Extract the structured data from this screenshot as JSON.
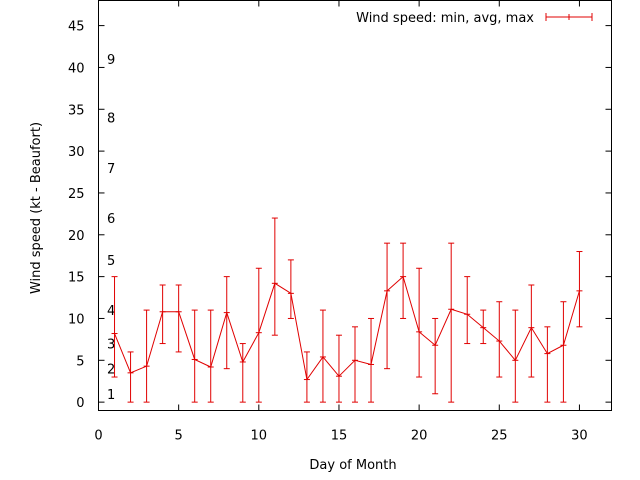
{
  "chart_data": {
    "type": "line",
    "title": "",
    "xlabel": "Day of Month",
    "ylabel": "Wind speed (kt - Beaufort)",
    "xlim": [
      0,
      32
    ],
    "ylim": [
      -1,
      48
    ],
    "x_ticks": [
      0,
      5,
      10,
      15,
      20,
      25,
      30
    ],
    "y_ticks": [
      0,
      5,
      10,
      15,
      20,
      25,
      30,
      35,
      40,
      45
    ],
    "beaufort_labels": [
      {
        "label": "1",
        "kt": 1
      },
      {
        "label": "2",
        "kt": 4
      },
      {
        "label": "3",
        "kt": 7
      },
      {
        "label": "4",
        "kt": 11
      },
      {
        "label": "5",
        "kt": 17
      },
      {
        "label": "6",
        "kt": 22
      },
      {
        "label": "7",
        "kt": 28
      },
      {
        "label": "8",
        "kt": 34
      },
      {
        "label": "9",
        "kt": 41
      }
    ],
    "legend_position": "top-right",
    "grid": false,
    "color": "#e00000",
    "series": [
      {
        "name": "Wind speed: min, avg, max",
        "x": [
          1,
          2,
          3,
          4,
          5,
          6,
          7,
          8,
          9,
          10,
          11,
          12,
          13,
          14,
          15,
          16,
          17,
          18,
          19,
          20,
          21,
          22,
          23,
          24,
          25,
          26,
          27,
          28,
          29,
          30
        ],
        "avg": [
          8.2,
          3.5,
          4.3,
          10.8,
          10.8,
          5.1,
          4.2,
          10.7,
          4.8,
          8.3,
          14.2,
          13.0,
          2.7,
          5.4,
          3.1,
          5.0,
          4.5,
          13.3,
          15.0,
          8.4,
          6.8,
          11.1,
          10.5,
          8.9,
          7.3,
          5.0,
          8.9,
          5.8,
          6.8,
          13.3
        ],
        "min": [
          3,
          0,
          0,
          7,
          6,
          0,
          0,
          4,
          0,
          0,
          8,
          10,
          0,
          0,
          0,
          0,
          0,
          4,
          10,
          3,
          1,
          0,
          7,
          7,
          3,
          0,
          3,
          0,
          0,
          9
        ],
        "max": [
          15,
          6,
          11,
          14,
          14,
          11,
          11,
          15,
          7,
          16,
          22,
          17,
          6,
          11,
          8,
          9,
          10,
          19,
          19,
          16,
          10,
          19,
          15,
          11,
          12,
          11,
          14,
          9,
          12,
          18
        ]
      }
    ]
  }
}
